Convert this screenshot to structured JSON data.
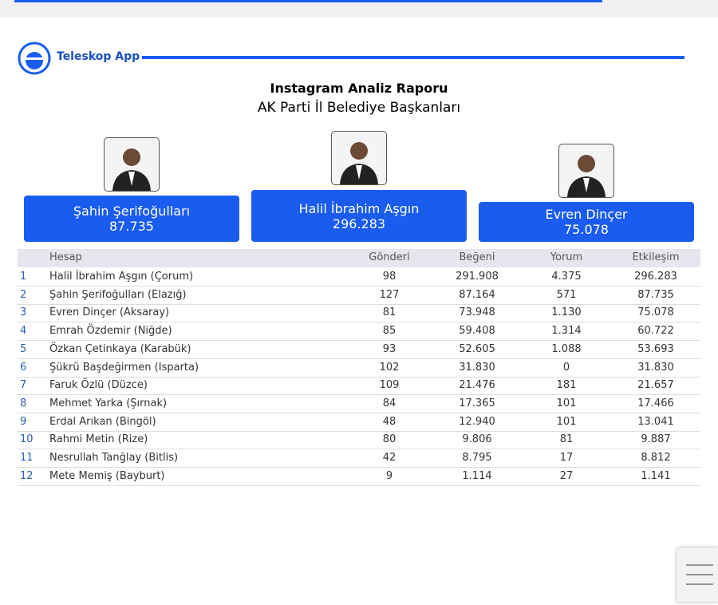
{
  "header": {
    "brand": "Teleskop App",
    "title": "Instagram Analiz Raporu",
    "subtitle": "AK Parti İl Belediye Başkanları"
  },
  "podium": [
    {
      "name": "Şahin Şerifoğulları",
      "value": "87.735"
    },
    {
      "name": "Halil İbrahim Aşgın",
      "value": "296.283"
    },
    {
      "name": "Evren Dinçer",
      "value": "75.078"
    }
  ],
  "table": {
    "columns": [
      "Hesap",
      "Gönderi",
      "Beğeni",
      "Yorum",
      "Etkileşim"
    ],
    "rows": [
      [
        "1",
        "Halil İbrahim Aşgın (Çorum)",
        "98",
        "291.908",
        "4.375",
        "296.283"
      ],
      [
        "2",
        "Şahin Şerifoğulları (Elazığ)",
        "127",
        "87.164",
        "571",
        "87.735"
      ],
      [
        "3",
        "Evren Dinçer (Aksaray)",
        "81",
        "73.948",
        "1.130",
        "75.078"
      ],
      [
        "4",
        "Emrah Özdemir (Niğde)",
        "85",
        "59.408",
        "1.314",
        "60.722"
      ],
      [
        "5",
        "Özkan Çetinkaya (Karabük)",
        "93",
        "52.605",
        "1.088",
        "53.693"
      ],
      [
        "6",
        "Şükrü Başdeğirmen (Isparta)",
        "102",
        "31.830",
        "0",
        "31.830"
      ],
      [
        "7",
        "Faruk Özlü (Düzce)",
        "109",
        "21.476",
        "181",
        "21.657"
      ],
      [
        "8",
        "Mehmet Yarka (Şırnak)",
        "84",
        "17.365",
        "101",
        "17.466"
      ],
      [
        "9",
        "Erdal Arıkan (Bingöl)",
        "48",
        "12.940",
        "101",
        "13.041"
      ],
      [
        "10",
        "Rahmi Metin (Rize)",
        "80",
        "9.806",
        "81",
        "9.887"
      ],
      [
        "11",
        "Nesrullah Tanğlay (Bitlis)",
        "42",
        "8.795",
        "17",
        "8.812"
      ],
      [
        "12",
        "Mete Memiş (Bayburt)",
        "9",
        "1.114",
        "27",
        "1.141"
      ]
    ]
  }
}
